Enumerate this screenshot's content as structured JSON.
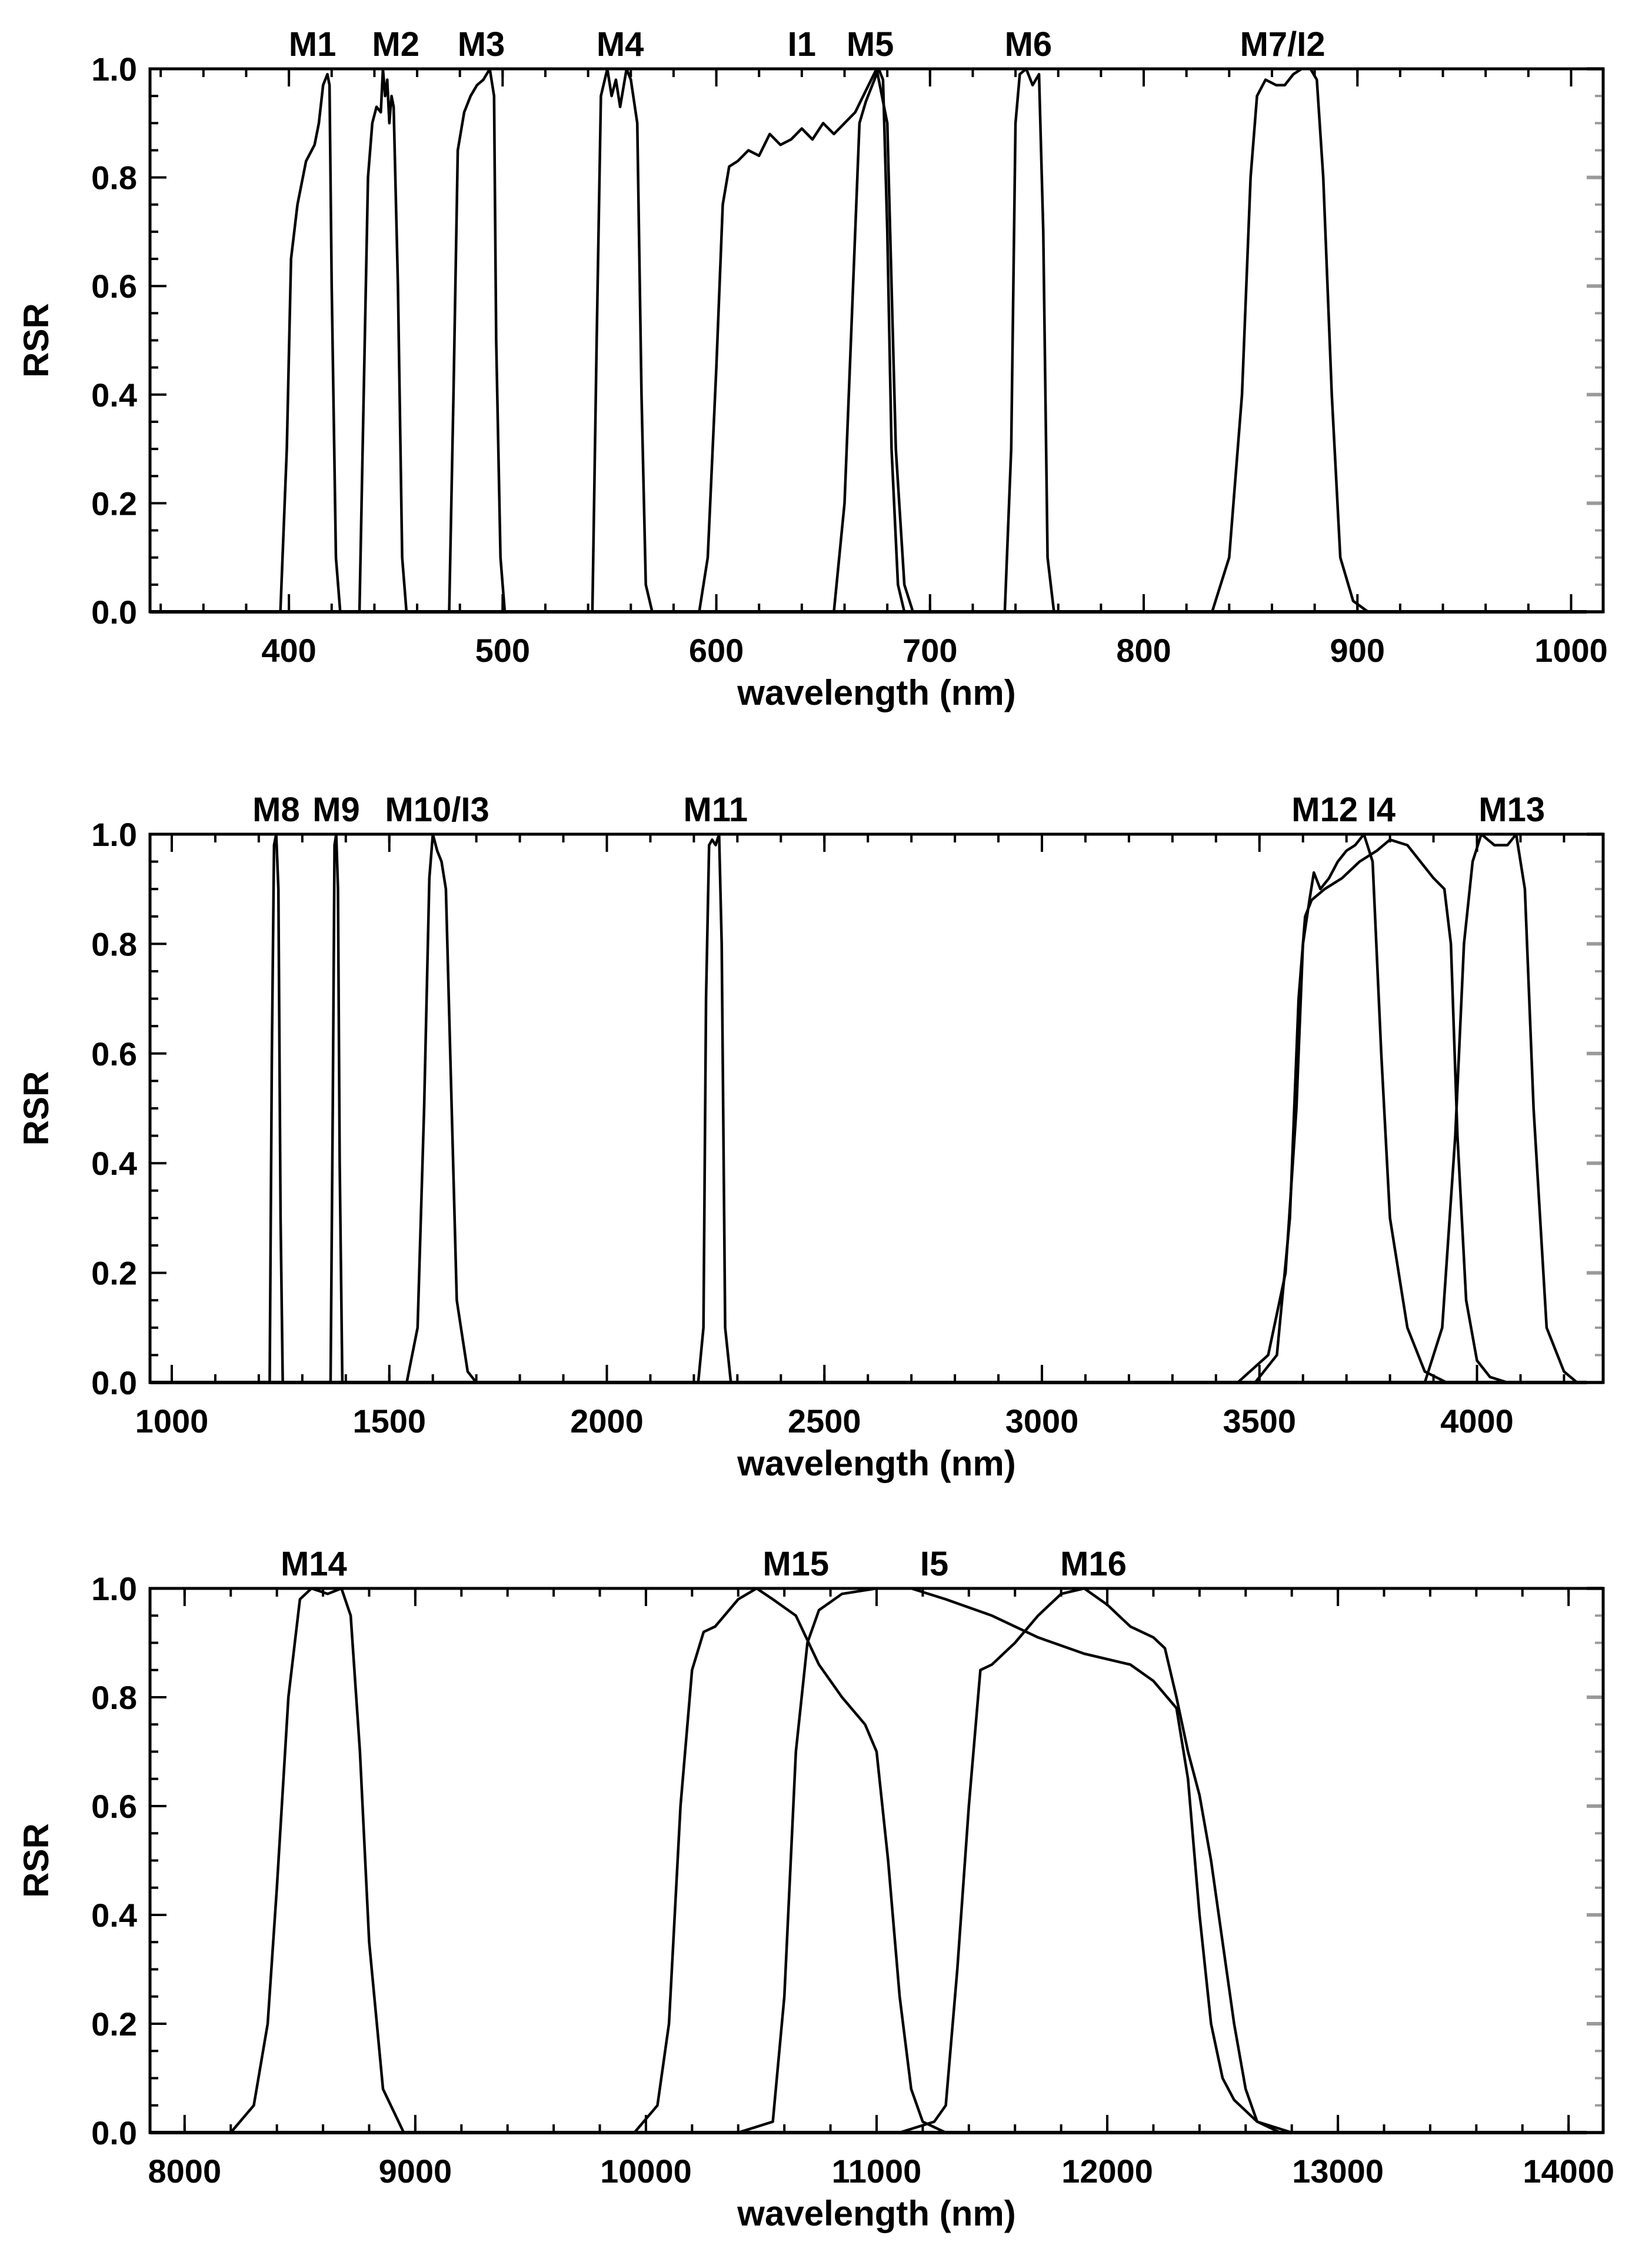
{
  "chart_data": [
    {
      "type": "line",
      "xlabel": "wavelength (nm)",
      "ylabel": "RSR",
      "xlim": [
        335,
        1015
      ],
      "ylim": [
        0.0,
        1.0
      ],
      "xticks": [
        400,
        500,
        600,
        700,
        800,
        900,
        1000
      ],
      "yticks": [
        "0.0",
        "0.2",
        "0.4",
        "0.6",
        "0.8",
        "1.0"
      ],
      "band_labels": [
        {
          "text": "M1",
          "x": 411
        },
        {
          "text": "M2",
          "x": 450
        },
        {
          "text": "M3",
          "x": 490
        },
        {
          "text": "M4",
          "x": 555
        },
        {
          "text": "I1",
          "x": 640
        },
        {
          "text": "M5",
          "x": 672
        },
        {
          "text": "M6",
          "x": 746
        },
        {
          "text": "M7/I2",
          "x": 865
        }
      ],
      "series": [
        {
          "name": "M1",
          "x": [
            396,
            399,
            401,
            404,
            408,
            412,
            414,
            416,
            418,
            419,
            420,
            422,
            424
          ],
          "y": [
            0,
            0.3,
            0.65,
            0.75,
            0.83,
            0.86,
            0.9,
            0.97,
            0.99,
            0.97,
            0.6,
            0.1,
            0
          ]
        },
        {
          "name": "M2",
          "x": [
            433,
            435,
            437,
            439,
            441,
            443,
            444,
            445,
            446,
            447,
            448,
            449,
            451,
            453,
            455
          ],
          "y": [
            0,
            0.4,
            0.8,
            0.9,
            0.93,
            0.92,
            1.0,
            0.95,
            0.98,
            0.9,
            0.95,
            0.93,
            0.6,
            0.1,
            0
          ]
        },
        {
          "name": "M3",
          "x": [
            475,
            477,
            479,
            482,
            485,
            488,
            491,
            494,
            496,
            497,
            499,
            501
          ],
          "y": [
            0,
            0.4,
            0.85,
            0.92,
            0.95,
            0.97,
            0.98,
            1.0,
            0.95,
            0.5,
            0.1,
            0
          ]
        },
        {
          "name": "M4",
          "x": [
            542,
            544,
            546,
            549,
            551,
            553,
            555,
            558,
            560,
            563,
            565,
            567,
            570
          ],
          "y": [
            0,
            0.5,
            0.95,
            1.0,
            0.95,
            0.98,
            0.93,
            1.0,
            0.98,
            0.9,
            0.4,
            0.05,
            0
          ]
        },
        {
          "name": "I1",
          "x": [
            592,
            596,
            600,
            603,
            606,
            610,
            615,
            620,
            625,
            630,
            635,
            640,
            645,
            650,
            655,
            660,
            665,
            670,
            675,
            680,
            684,
            688,
            692
          ],
          "y": [
            0,
            0.1,
            0.45,
            0.75,
            0.82,
            0.83,
            0.85,
            0.84,
            0.88,
            0.86,
            0.87,
            0.89,
            0.87,
            0.9,
            0.88,
            0.9,
            0.92,
            0.96,
            1.0,
            0.9,
            0.3,
            0.05,
            0
          ]
        },
        {
          "name": "M5",
          "x": [
            655,
            660,
            664,
            667,
            670,
            673,
            676,
            678,
            680,
            682,
            685,
            688
          ],
          "y": [
            0,
            0.2,
            0.6,
            0.9,
            0.94,
            0.97,
            1.0,
            0.98,
            0.7,
            0.3,
            0.05,
            0
          ]
        },
        {
          "name": "M6",
          "x": [
            735,
            738,
            740,
            742,
            745,
            748,
            751,
            753,
            755,
            758
          ],
          "y": [
            0,
            0.3,
            0.9,
            0.99,
            1.0,
            0.97,
            0.99,
            0.7,
            0.1,
            0
          ]
        },
        {
          "name": "M7/I2",
          "x": [
            832,
            840,
            846,
            850,
            853,
            857,
            862,
            866,
            870,
            874,
            878,
            881,
            884,
            888,
            892,
            898,
            905
          ],
          "y": [
            0,
            0.1,
            0.4,
            0.8,
            0.95,
            0.98,
            0.97,
            0.97,
            0.99,
            1.0,
            1.0,
            0.98,
            0.8,
            0.4,
            0.1,
            0.02,
            0
          ]
        }
      ]
    },
    {
      "type": "line",
      "xlabel": "wavelength (nm)",
      "ylabel": "RSR",
      "xlim": [
        950,
        4290
      ],
      "ylim": [
        0.0,
        1.0
      ],
      "xticks": [
        1000,
        1500,
        2000,
        2500,
        3000,
        3500,
        4000
      ],
      "yticks": [
        "0.0",
        "0.2",
        "0.4",
        "0.6",
        "0.8",
        "1.0"
      ],
      "band_labels": [
        {
          "text": "M8",
          "x": 1240
        },
        {
          "text": "M9",
          "x": 1378
        },
        {
          "text": "M10/I3",
          "x": 1610
        },
        {
          "text": "M11",
          "x": 2250
        },
        {
          "text": "M12",
          "x": 3650
        },
        {
          "text": "I4",
          "x": 3780
        },
        {
          "text": "M13",
          "x": 4080
        }
      ],
      "series": [
        {
          "name": "M8",
          "x": [
            1225,
            1230,
            1235,
            1240,
            1245,
            1250,
            1255
          ],
          "y": [
            0,
            0.6,
            0.98,
            1.0,
            0.9,
            0.3,
            0
          ]
        },
        {
          "name": "M9",
          "x": [
            1365,
            1370,
            1374,
            1378,
            1382,
            1386,
            1392
          ],
          "y": [
            0,
            0.5,
            0.98,
            1.0,
            0.9,
            0.4,
            0
          ]
        },
        {
          "name": "M10/I3",
          "x": [
            1540,
            1565,
            1580,
            1592,
            1600,
            1610,
            1620,
            1630,
            1640,
            1655,
            1680,
            1700
          ],
          "y": [
            0,
            0.1,
            0.5,
            0.92,
            1.0,
            0.97,
            0.95,
            0.9,
            0.6,
            0.15,
            0.02,
            0
          ]
        },
        {
          "name": "M11",
          "x": [
            2210,
            2222,
            2228,
            2235,
            2242,
            2250,
            2258,
            2264,
            2272,
            2285
          ],
          "y": [
            0,
            0.1,
            0.7,
            0.98,
            0.99,
            0.98,
            1.0,
            0.8,
            0.1,
            0
          ]
        },
        {
          "name": "M12",
          "x": [
            3450,
            3520,
            3560,
            3585,
            3600,
            3615,
            3625,
            3640,
            3660,
            3680,
            3700,
            3720,
            3740,
            3760,
            3780,
            3800,
            3840,
            3880,
            3930
          ],
          "y": [
            0,
            0.05,
            0.2,
            0.5,
            0.8,
            0.88,
            0.93,
            0.9,
            0.92,
            0.95,
            0.97,
            0.98,
            1.0,
            0.95,
            0.6,
            0.3,
            0.1,
            0.02,
            0
          ]
        },
        {
          "name": "I4",
          "x": [
            3490,
            3540,
            3570,
            3590,
            3605,
            3620,
            3650,
            3690,
            3730,
            3770,
            3800,
            3840,
            3870,
            3900,
            3925,
            3940,
            3955,
            3975,
            4000,
            4030,
            4070
          ],
          "y": [
            0,
            0.05,
            0.3,
            0.7,
            0.85,
            0.88,
            0.9,
            0.92,
            0.95,
            0.97,
            0.99,
            0.98,
            0.95,
            0.92,
            0.9,
            0.8,
            0.45,
            0.15,
            0.04,
            0.01,
            0
          ]
        },
        {
          "name": "M13",
          "x": [
            3880,
            3920,
            3950,
            3970,
            3990,
            4010,
            4040,
            4070,
            4090,
            4110,
            4130,
            4160,
            4200,
            4230
          ],
          "y": [
            0,
            0.1,
            0.45,
            0.8,
            0.95,
            1.0,
            0.98,
            0.98,
            1.0,
            0.9,
            0.5,
            0.1,
            0.02,
            0
          ]
        }
      ]
    },
    {
      "type": "line",
      "xlabel": "wavelength (nm)",
      "ylabel": "RSR",
      "xlim": [
        7850,
        14150
      ],
      "ylim": [
        0.0,
        1.0
      ],
      "xticks": [
        8000,
        9000,
        10000,
        11000,
        12000,
        13000,
        14000
      ],
      "yticks": [
        "0.0",
        "0.2",
        "0.4",
        "0.6",
        "0.8",
        "1.0"
      ],
      "band_labels": [
        {
          "text": "M14",
          "x": 8560
        },
        {
          "text": "M15",
          "x": 10650
        },
        {
          "text": "I5",
          "x": 11250
        },
        {
          "text": "M16",
          "x": 11940
        }
      ],
      "series": [
        {
          "name": "M14",
          "x": [
            8200,
            8300,
            8360,
            8400,
            8450,
            8500,
            8550,
            8620,
            8680,
            8720,
            8760,
            8800,
            8860,
            8950
          ],
          "y": [
            0,
            0.05,
            0.2,
            0.45,
            0.8,
            0.98,
            1.0,
            0.99,
            1.0,
            0.95,
            0.7,
            0.35,
            0.08,
            0
          ]
        },
        {
          "name": "M15",
          "x": [
            9950,
            10050,
            10100,
            10150,
            10200,
            10250,
            10300,
            10400,
            10480,
            10550,
            10650,
            10750,
            10850,
            10950,
            11000,
            11050,
            11100,
            11150,
            11200,
            11250,
            11300
          ],
          "y": [
            0,
            0.05,
            0.2,
            0.6,
            0.85,
            0.92,
            0.93,
            0.98,
            1.0,
            0.98,
            0.95,
            0.86,
            0.8,
            0.75,
            0.7,
            0.5,
            0.25,
            0.08,
            0.02,
            0.01,
            0
          ]
        },
        {
          "name": "I5",
          "x": [
            10400,
            10550,
            10600,
            10650,
            10700,
            10750,
            10850,
            11000,
            11150,
            11300,
            11500,
            11700,
            11900,
            12100,
            12200,
            12300,
            12350,
            12400,
            12450,
            12500,
            12550,
            12650,
            12800
          ],
          "y": [
            0,
            0.02,
            0.25,
            0.7,
            0.9,
            0.96,
            0.99,
            1.0,
            1.0,
            0.98,
            0.95,
            0.91,
            0.88,
            0.86,
            0.83,
            0.78,
            0.65,
            0.4,
            0.2,
            0.1,
            0.06,
            0.02,
            0
          ]
        },
        {
          "name": "M16",
          "x": [
            11100,
            11250,
            11300,
            11350,
            11400,
            11450,
            11500,
            11600,
            11700,
            11800,
            11900,
            12000,
            12100,
            12200,
            12250,
            12300,
            12350,
            12400,
            12450,
            12500,
            12550,
            12600,
            12650,
            12750
          ],
          "y": [
            0,
            0.02,
            0.05,
            0.3,
            0.6,
            0.85,
            0.86,
            0.9,
            0.95,
            0.99,
            1.0,
            0.97,
            0.93,
            0.91,
            0.89,
            0.8,
            0.7,
            0.62,
            0.5,
            0.35,
            0.2,
            0.08,
            0.02,
            0
          ]
        }
      ]
    }
  ]
}
